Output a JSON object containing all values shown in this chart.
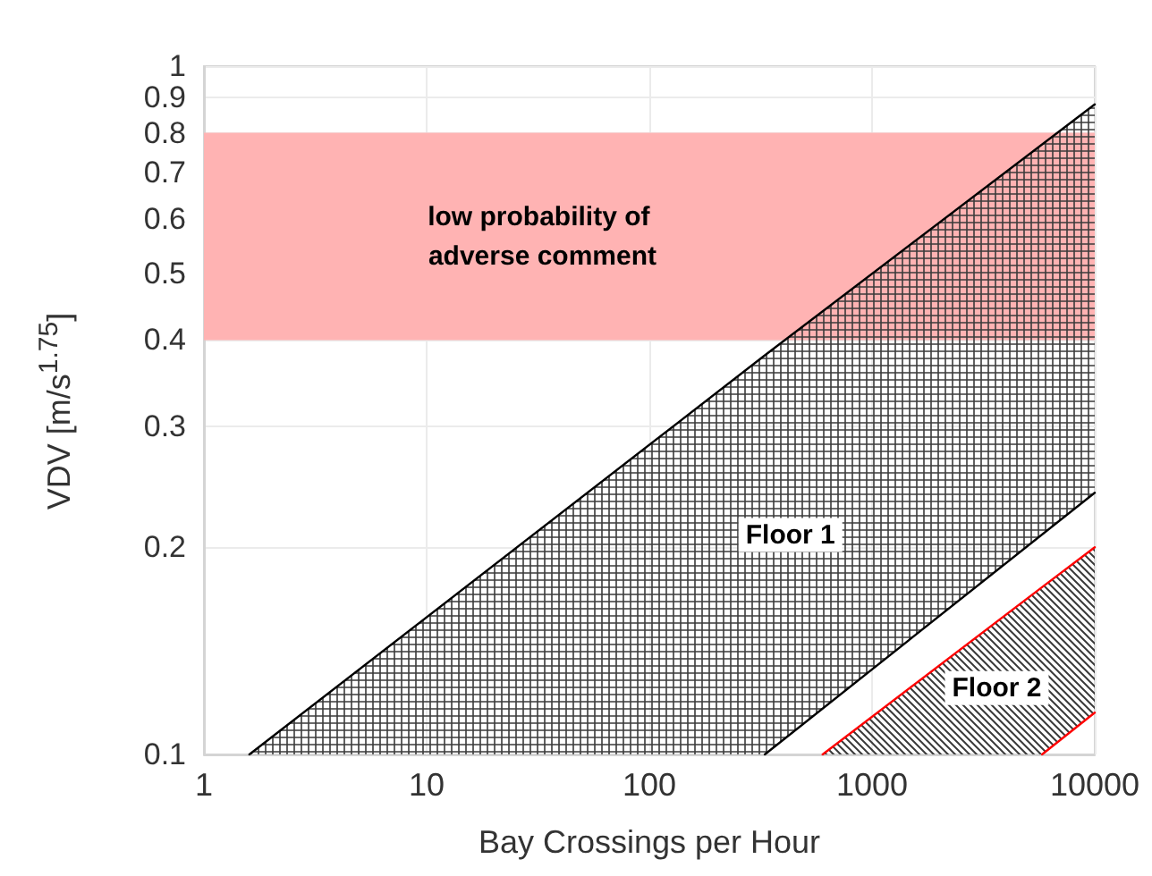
{
  "chart_data": {
    "type": "line",
    "xlabel": "Bay Crossings per Hour",
    "ylabel": "VDV [m/s$^{1.75}$]",
    "log": "xy",
    "xlim": [
      1,
      10000
    ],
    "ylim": [
      0.1,
      1
    ],
    "xticks": [
      1,
      10,
      100,
      1000,
      10000
    ],
    "yticks": [
      0.1,
      0.2,
      0.3,
      0.4,
      0.5,
      0.6,
      0.7,
      0.8,
      0.9,
      1
    ],
    "grid": true,
    "bands": [
      {
        "axis": "y",
        "from": 0.4,
        "to": 0.8,
        "label": "low probability of adverse comment",
        "color": "#ffb3b3"
      }
    ],
    "series": [
      {
        "color": "#000000",
        "x": [
          1.6,
          330,
          10000
        ],
        "values": [
          0.1,
          0.38,
          0.88
        ],
        "lower": [
          0.1,
          0.1,
          0.24
        ],
        "upper": [
          0.1,
          0.38,
          0.88
        ]
      },
      {
        "color": "#000000",
        "x": [
          330,
          10000
        ],
        "values": [
          0.1,
          0.24
        ]
      },
      {
        "color": "#ff0000",
        "x": [
          600,
          5800,
          10000
        ],
        "values": [
          0.1,
          0.175,
          0.2
        ],
        "lower": [
          0.1,
          0.1,
          0.115
        ],
        "upper": [
          0.1,
          0.175,
          0.2
        ]
      },
      {
        "color": "#ff0000",
        "x": [
          5800,
          10000
        ],
        "values": [
          0.1,
          0.115
        ]
      }
    ],
    "annotations": [
      "Floor 1",
      "Floor 2"
    ]
  }
}
